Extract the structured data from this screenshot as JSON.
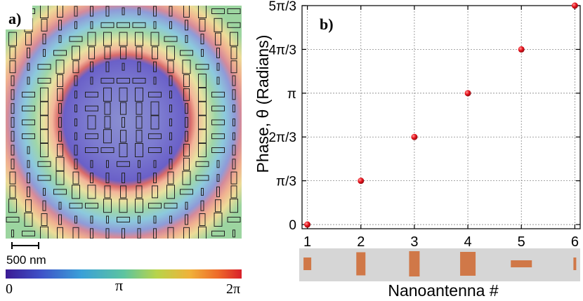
{
  "panel_a": {
    "label": "a)",
    "scalebar_label": "500 nm",
    "colorbar": {
      "min_label": "0",
      "mid_label": "π",
      "max_label": "2π"
    }
  },
  "panel_b": {
    "label": "b)"
  },
  "chart_data": {
    "type": "scatter",
    "title": "",
    "xlabel": "Nanoantenna #",
    "ylabel": "Phase, θ (Radians)",
    "x": [
      1,
      2,
      3,
      4,
      5,
      6
    ],
    "y": [
      0,
      1.0472,
      2.0944,
      3.1416,
      4.1888,
      5.236
    ],
    "xlim": [
      0.9,
      6.1
    ],
    "ylim": [
      -0.1,
      5.236
    ],
    "xticks": [
      1,
      2,
      3,
      4,
      5,
      6
    ],
    "xtick_labels": [
      "1",
      "2",
      "3",
      "4",
      "5",
      "6"
    ],
    "yticks": [
      0,
      1.0472,
      2.0944,
      3.1416,
      4.1888,
      5.236
    ],
    "ytick_labels": [
      "0",
      "π/3",
      "2π/3",
      "π",
      "4π/3",
      "5π/3"
    ],
    "grid": true,
    "marker_color": "#e8121b",
    "antenna_strip_note": "shapes of nanoantennas 1–6 shown below x-axis"
  },
  "colors": {
    "antenna_fill": "#d07848",
    "strip_bg": "#d6d6d6",
    "grid": "#888888"
  }
}
